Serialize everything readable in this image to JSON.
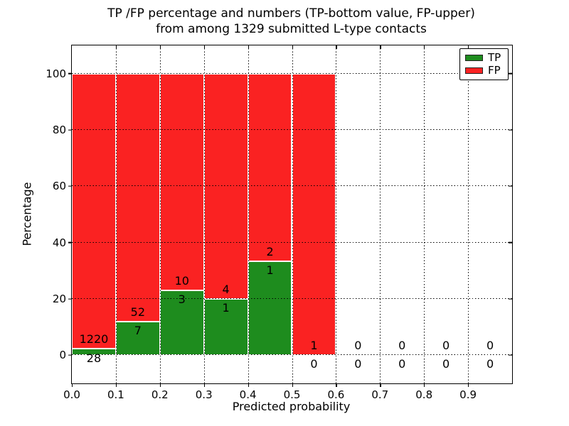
{
  "figure": {
    "title_line1": "TP /FP percentage and numbers (TP-bottom value, FP-upper)",
    "title_line2": "from among 1329 submitted L-type contacts"
  },
  "chart_data": {
    "type": "bar",
    "subtype": "stacked-percentage-histogram",
    "title": "TP /FP percentage and numbers (TP-bottom value, FP-upper) from among 1329 submitted L-type contacts",
    "xlabel": "Predicted probability",
    "ylabel": "Percentage",
    "xlim": [
      0.0,
      1.0
    ],
    "ylim": [
      -10,
      110
    ],
    "bin_width": 0.1,
    "total_contacts": 1329,
    "grid": "dotted-black-both-axes",
    "legend_position": "upper right",
    "x_ticks": [
      "0.0",
      "0.1",
      "0.2",
      "0.3",
      "0.4",
      "0.5",
      "0.6",
      "0.7",
      "0.8",
      "0.9"
    ],
    "y_ticks": [
      "0",
      "20",
      "40",
      "60",
      "80",
      "100"
    ],
    "categories": [
      "0.0-0.1",
      "0.1-0.2",
      "0.2-0.3",
      "0.3-0.4",
      "0.4-0.5",
      "0.5-0.6",
      "0.6-0.7",
      "0.7-0.8",
      "0.8-0.9",
      "0.9-1.0"
    ],
    "series": [
      {
        "name": "TP",
        "color": "#1e8c1e",
        "counts": [
          28,
          7,
          3,
          1,
          1,
          0,
          0,
          0,
          0,
          0
        ],
        "percentages": [
          2.24,
          11.86,
          23.08,
          20.0,
          33.33,
          0,
          0,
          0,
          0,
          0
        ]
      },
      {
        "name": "FP",
        "color": "#fa2222",
        "counts": [
          1220,
          52,
          10,
          4,
          2,
          1,
          0,
          0,
          0,
          0
        ],
        "percentages": [
          97.76,
          88.14,
          76.92,
          80.0,
          66.67,
          100.0,
          0,
          0,
          0,
          0
        ]
      }
    ],
    "annotation_rule": "FP count printed above green segment top, TP count printed below it",
    "label_offset_units": 3.3
  },
  "legend": {
    "items": [
      {
        "label": "TP",
        "color": "#1e8c1e"
      },
      {
        "label": "FP",
        "color": "#fa2222"
      }
    ]
  },
  "axes": {
    "xlabel": "Predicted probability",
    "ylabel": "Percentage"
  },
  "colors": {
    "tp": "#1e8c1e",
    "fp": "#fa2222",
    "grid": "#000000",
    "bar_edge": "#ffffff",
    "background": "#ffffff"
  }
}
